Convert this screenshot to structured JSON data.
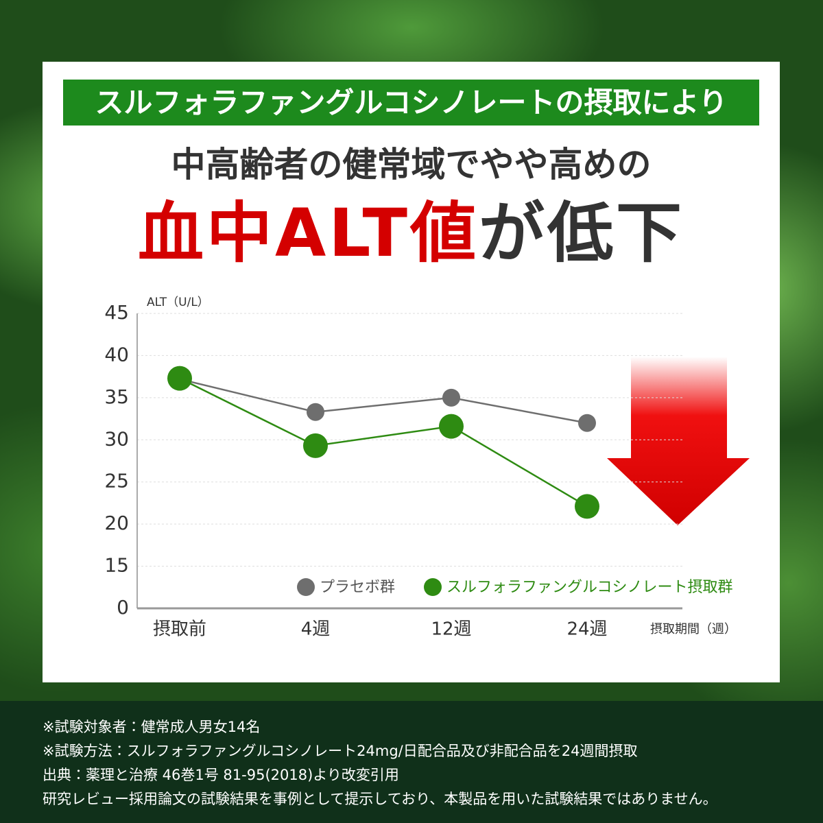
{
  "banner": "スルフォラファングルコシノレートの摂取により",
  "headline": {
    "line1": "中高齢者の健常域でやや高めの",
    "highlight": "血中ALT値",
    "rest": "が低下"
  },
  "chart_data": {
    "type": "line",
    "y_label": "ALT（U/L）",
    "x_label": "摂取期間（週）",
    "categories": [
      "摂取前",
      "4週",
      "12週",
      "24週"
    ],
    "series": [
      {
        "name": "プラセボ群",
        "color": "#6e6e6e",
        "values": [
          37.2,
          33.3,
          35.0,
          32.0
        ]
      },
      {
        "name": "スルフォラファングルコシノレート摂取群",
        "color": "#2e8b12",
        "values": [
          37.3,
          29.3,
          31.6,
          22.1
        ]
      }
    ],
    "ylim": [
      0,
      45
    ],
    "yticks": [
      0,
      15,
      20,
      25,
      30,
      35,
      40,
      45
    ],
    "grid": true
  },
  "footnotes": [
    "※試験対象者：健常成人男女14名",
    "※試験方法：スルフォラファングルコシノレート24mg/日配合品及び非配合品を24週間摂取",
    "出典：薬理と治療 46巻1号 81-95(2018)より改変引用",
    "研究レビュー採用論文の試験結果を事例として提示しており、本製品を用いた試験結果ではありません。"
  ]
}
